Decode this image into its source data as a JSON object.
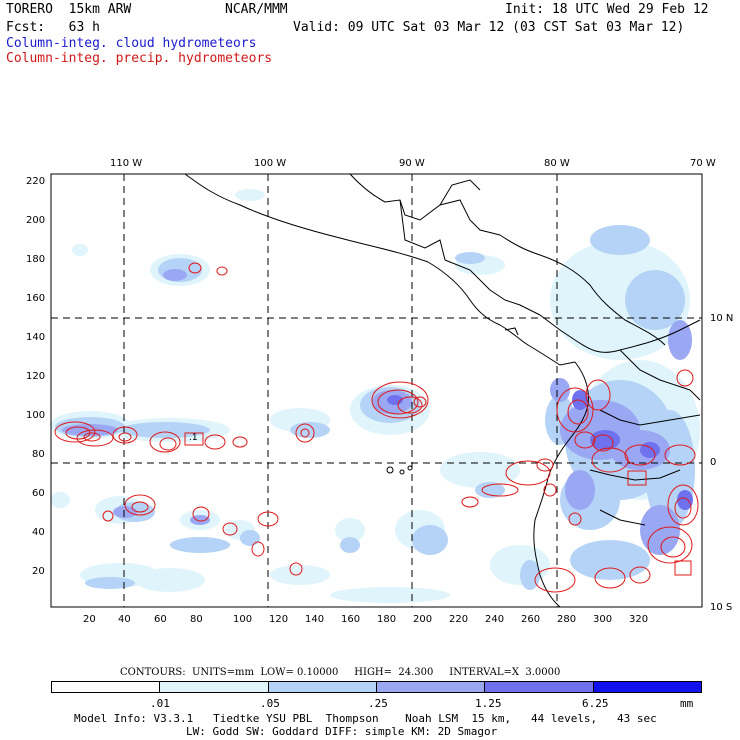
{
  "header": {
    "title": "TORERO  15km ARW",
    "center": "NCAR/MMM",
    "init": "Init: 18 UTC Wed 29 Feb 12",
    "fcst": "Fcst:   63 h",
    "valid": "Valid: 09 UTC Sat 03 Mar 12 (03 CST Sat 03 Mar 12)",
    "legend_cloud": "Column-integ. cloud hydrometeors",
    "legend_precip": "Column-integ. precip. hydrometeors"
  },
  "axes": {
    "top_lon": [
      "110 W",
      "100 W",
      "90 W",
      "80 W",
      "70 W"
    ],
    "right_lat": [
      "10 N",
      "0",
      "10 S"
    ],
    "x_ticks": [
      "20",
      "40",
      "60",
      "80",
      "100",
      "120",
      "140",
      "160",
      "180",
      "200",
      "220",
      "240",
      "260",
      "280",
      "300",
      "320"
    ],
    "y_ticks": [
      "220",
      "200",
      "180",
      "160",
      "140",
      "120",
      "100",
      "80",
      "60",
      "40",
      "20"
    ]
  },
  "contours": {
    "label": "CONTOURS:  UNITS=mm  LOW= 0.10000     HIGH=  24.300     INTERVAL=X  3.0000"
  },
  "colorbar": {
    "labels": [
      ".01",
      ".05",
      ".25",
      "1.25",
      "6.25"
    ],
    "unit": "mm",
    "colors": [
      "#ffffff",
      "#dff4fb",
      "#b5d3f6",
      "#9aa7f2",
      "#6f71ee",
      "#3f3ff0",
      "#1212ee"
    ]
  },
  "footer": {
    "line1": "Model Info: V3.3.1   Tiedtke YSU PBL  Thompson    Noah LSM  15 km,   44 levels,   43 sec",
    "line2": "LW: Godd SW: Goddard DIFF: simple KM: 2D Smagor"
  },
  "map_features": {
    "precip_box_label": ".1"
  }
}
